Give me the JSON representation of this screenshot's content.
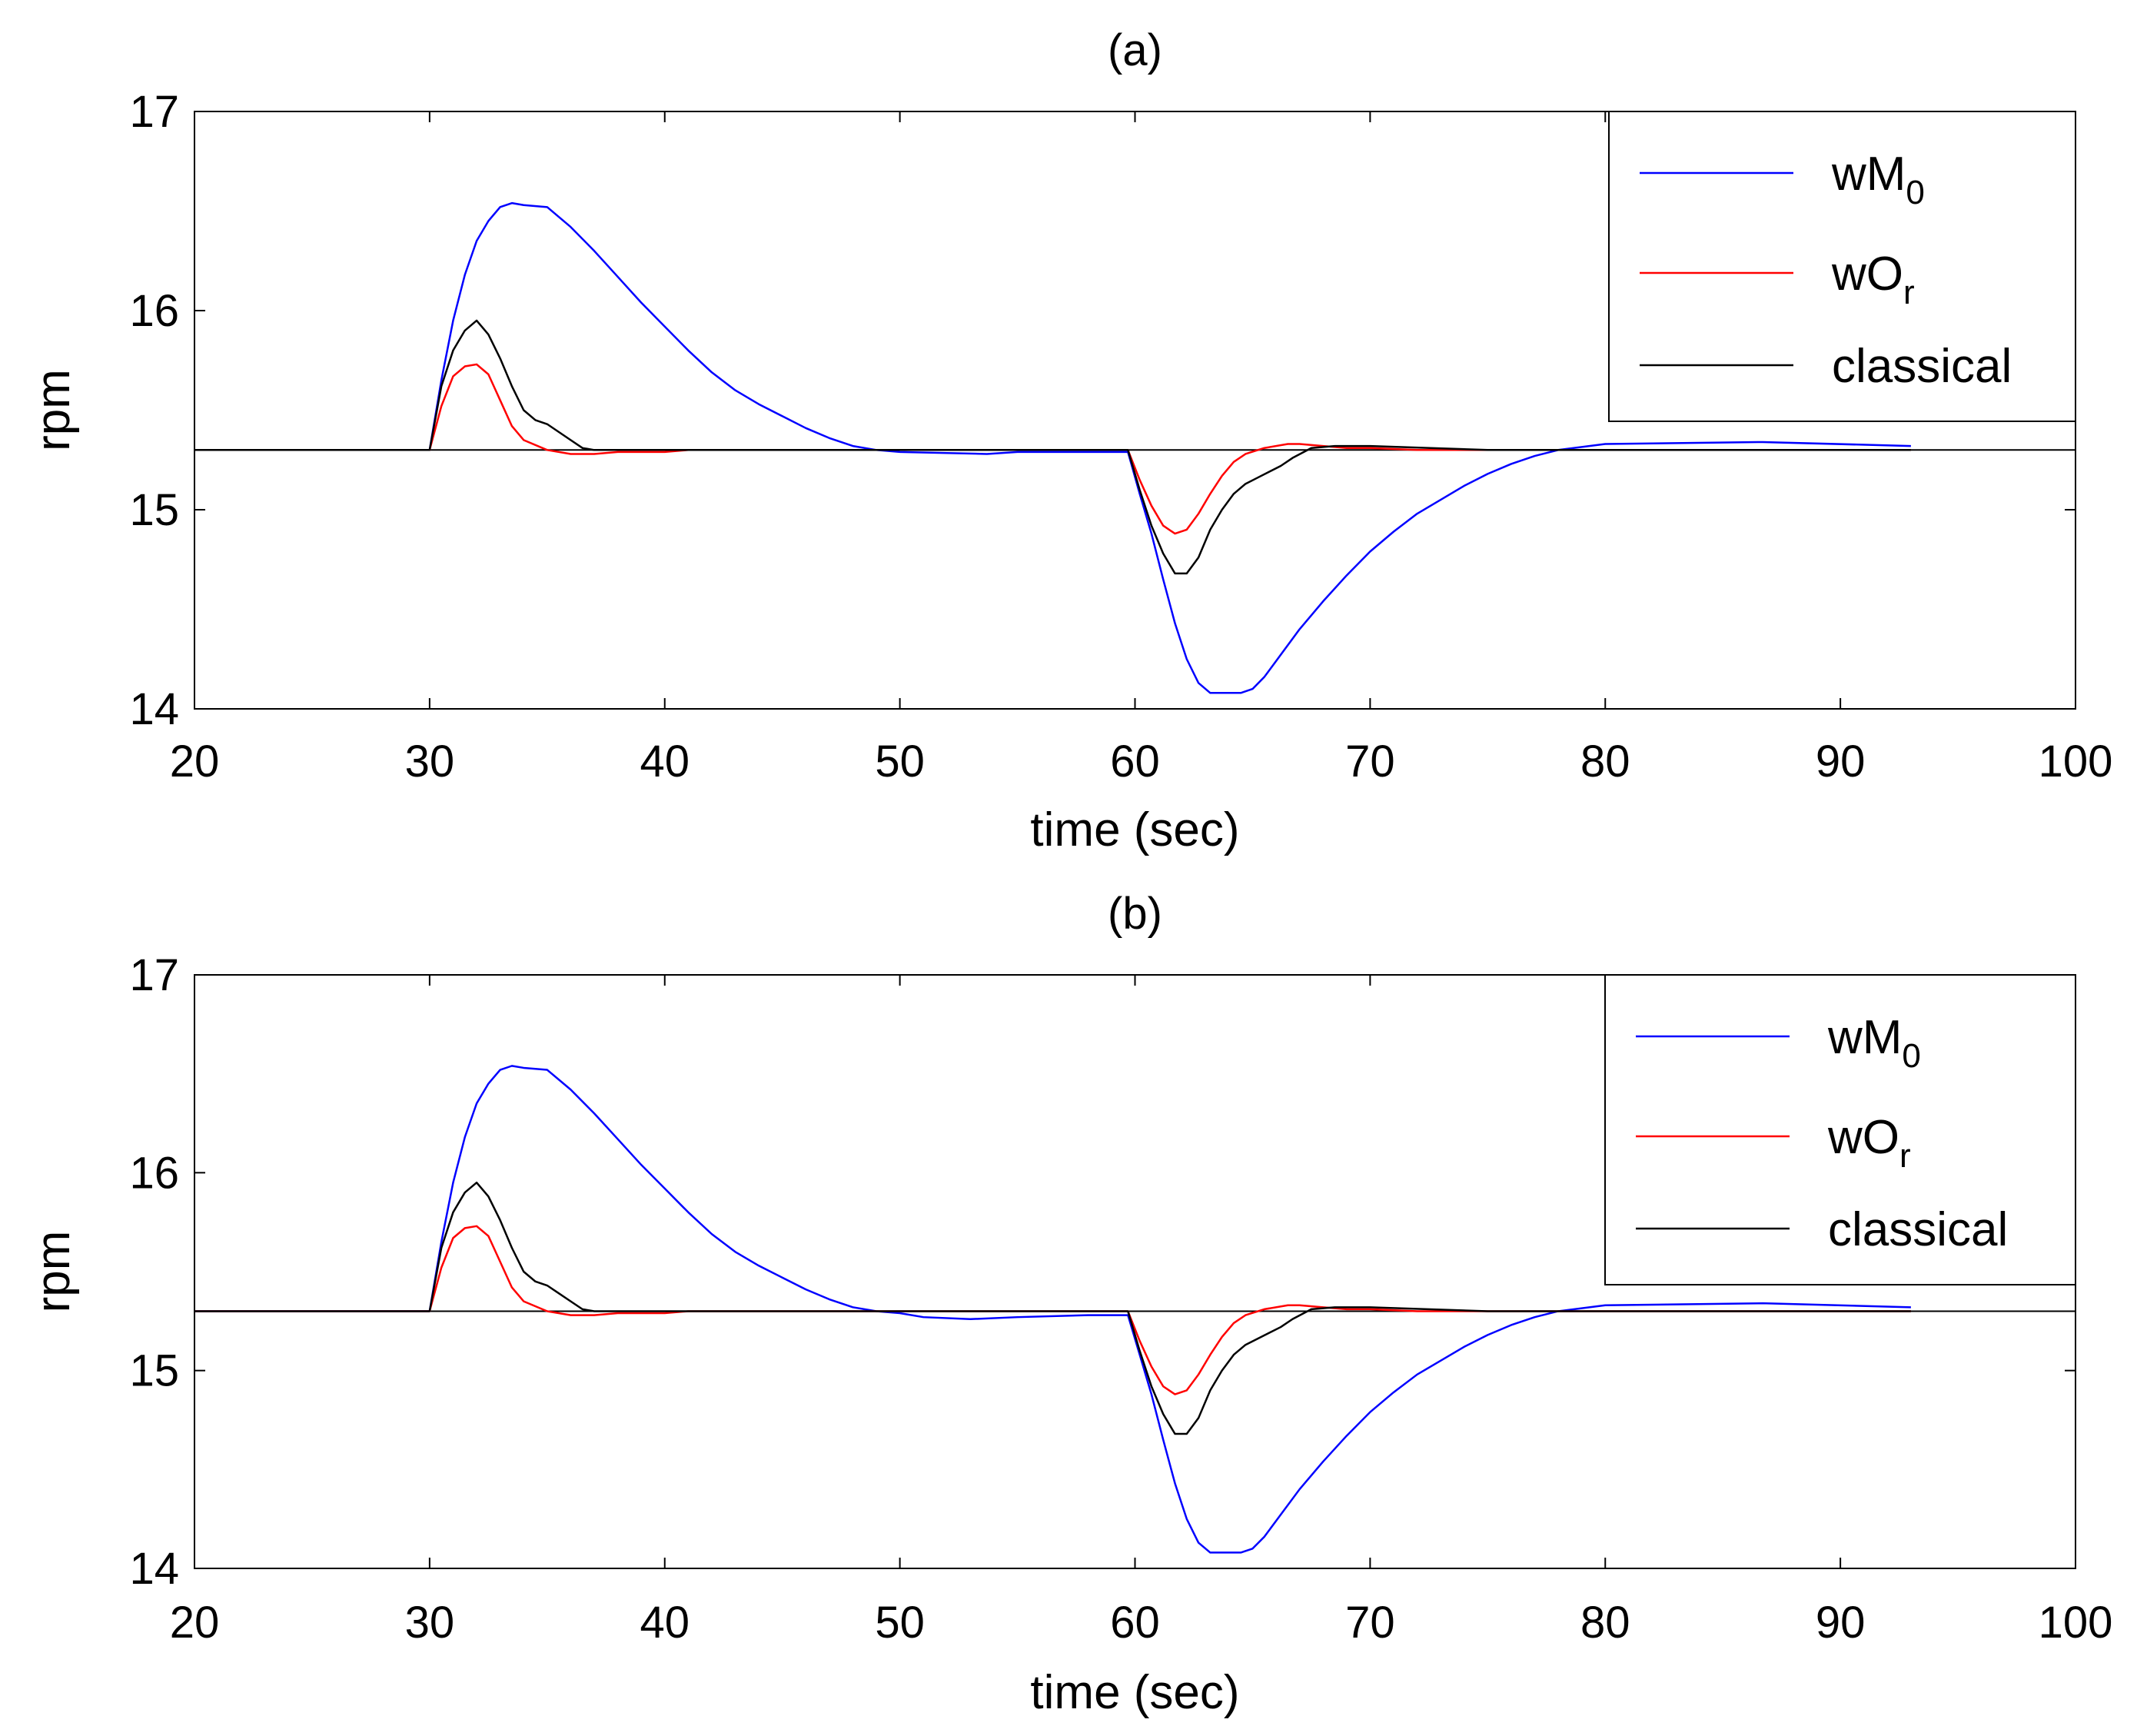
{
  "chart_data": [
    {
      "type": "line",
      "title": "(a)",
      "xlabel": "time (sec)",
      "ylabel": "rpm",
      "xlim": [
        20,
        100
      ],
      "ylim": [
        14,
        17
      ],
      "xticks": [
        20,
        30,
        40,
        50,
        60,
        70,
        80,
        90,
        100
      ],
      "yticks": [
        14,
        15,
        16,
        17
      ],
      "legend_position": "top-right",
      "reference": {
        "name": "reference",
        "color": "#000000",
        "x": [
          20,
          100
        ],
        "y": [
          15.3,
          15.3
        ]
      },
      "series": [
        {
          "name": "wM",
          "sub": "0",
          "color": "#0000ff",
          "x": [
            20,
            30,
            30.5,
            31,
            31.5,
            32,
            32.5,
            33,
            33.5,
            34,
            35,
            36,
            37,
            38,
            39,
            40,
            41,
            42,
            43,
            44,
            45,
            46,
            47,
            48,
            49,
            50,
            53.7,
            55,
            58,
            59.7,
            60.2,
            60.7,
            61.2,
            61.7,
            62.2,
            62.7,
            63.2,
            63.7,
            64.5,
            65,
            65.5,
            66,
            67,
            68,
            69,
            70,
            71,
            72,
            73,
            74,
            75,
            76,
            77,
            78,
            80,
            86.7,
            93
          ],
          "y": [
            15.3,
            15.3,
            15.65,
            15.95,
            16.18,
            16.35,
            16.45,
            16.52,
            16.54,
            16.53,
            16.52,
            16.42,
            16.3,
            16.17,
            16.04,
            15.92,
            15.8,
            15.69,
            15.6,
            15.53,
            15.47,
            15.41,
            15.36,
            15.32,
            15.3,
            15.29,
            15.28,
            15.29,
            15.29,
            15.29,
            15.08,
            14.88,
            14.65,
            14.43,
            14.25,
            14.13,
            14.08,
            14.08,
            14.08,
            14.1,
            14.16,
            14.24,
            14.4,
            14.54,
            14.67,
            14.79,
            14.89,
            14.98,
            15.05,
            15.12,
            15.18,
            15.23,
            15.27,
            15.3,
            15.33,
            15.34,
            15.32
          ]
        },
        {
          "name": "wO",
          "sub": "r",
          "color": "#ff0000",
          "x": [
            20,
            30,
            30.5,
            31,
            31.5,
            32,
            32.5,
            33,
            33.5,
            34,
            35,
            36,
            37,
            38,
            39,
            40,
            41,
            42,
            43,
            44,
            45,
            50,
            59.7,
            60.2,
            60.7,
            61.2,
            61.7,
            62.2,
            62.7,
            63.2,
            63.7,
            64.2,
            64.7,
            65.5,
            66.5,
            67,
            68,
            69,
            70,
            72,
            75,
            80,
            93
          ],
          "y": [
            15.3,
            15.3,
            15.52,
            15.67,
            15.72,
            15.73,
            15.68,
            15.55,
            15.42,
            15.35,
            15.3,
            15.28,
            15.28,
            15.29,
            15.29,
            15.29,
            15.3,
            15.3,
            15.3,
            15.3,
            15.3,
            15.3,
            15.3,
            15.15,
            15.02,
            14.92,
            14.88,
            14.9,
            14.98,
            15.08,
            15.17,
            15.24,
            15.28,
            15.31,
            15.33,
            15.33,
            15.32,
            15.31,
            15.31,
            15.3,
            15.3,
            15.3,
            15.3
          ]
        },
        {
          "name": "classical",
          "sub": "",
          "color": "#000000",
          "x": [
            20,
            30,
            30.5,
            31,
            31.5,
            32,
            32.5,
            33,
            33.5,
            34,
            34.5,
            35,
            35.5,
            36,
            36.5,
            37,
            38,
            39,
            40,
            42,
            45,
            50,
            59.7,
            60.2,
            60.7,
            61.2,
            61.7,
            62.2,
            62.7,
            63.2,
            63.7,
            64.2,
            64.7,
            65.2,
            65.7,
            66.2,
            66.7,
            67.5,
            68.5,
            70,
            75,
            80,
            93
          ],
          "y": [
            15.3,
            15.3,
            15.62,
            15.8,
            15.9,
            15.95,
            15.88,
            15.76,
            15.62,
            15.5,
            15.45,
            15.43,
            15.39,
            15.35,
            15.31,
            15.3,
            15.3,
            15.3,
            15.3,
            15.3,
            15.3,
            15.3,
            15.3,
            15.1,
            14.92,
            14.78,
            14.68,
            14.68,
            14.76,
            14.9,
            15.0,
            15.08,
            15.13,
            15.16,
            15.19,
            15.22,
            15.26,
            15.31,
            15.32,
            15.32,
            15.3,
            15.3,
            15.3
          ]
        }
      ]
    },
    {
      "type": "line",
      "title": "(b)",
      "xlabel": "time (sec)",
      "ylabel": "rpm",
      "xlim": [
        20,
        100
      ],
      "ylim": [
        14,
        17
      ],
      "xticks": [
        20,
        30,
        40,
        50,
        60,
        70,
        80,
        90,
        100
      ],
      "yticks": [
        14,
        15,
        16,
        17
      ],
      "legend_position": "top-right",
      "reference": {
        "name": "reference",
        "color": "#000000",
        "x": [
          20,
          100
        ],
        "y": [
          15.3,
          15.3
        ]
      },
      "series": [
        {
          "name": "wM",
          "sub": "0",
          "color": "#0000ff",
          "x": [
            20,
            30,
            30.5,
            31,
            31.5,
            32,
            32.5,
            33,
            33.5,
            34,
            35,
            36,
            37,
            38,
            39,
            40,
            41,
            42,
            43,
            44,
            45,
            46,
            47,
            48,
            49,
            50,
            51,
            53,
            55,
            58,
            59.7,
            60.2,
            60.7,
            61.2,
            61.7,
            62.2,
            62.7,
            63.2,
            63.7,
            64.5,
            65,
            65.5,
            66,
            67,
            68,
            69,
            70,
            71,
            72,
            73,
            74,
            75,
            76,
            77,
            78,
            80,
            86.7,
            93
          ],
          "y": [
            15.3,
            15.3,
            15.65,
            15.95,
            16.18,
            16.35,
            16.45,
            16.52,
            16.54,
            16.53,
            16.52,
            16.42,
            16.3,
            16.17,
            16.04,
            15.92,
            15.8,
            15.69,
            15.6,
            15.53,
            15.47,
            15.41,
            15.36,
            15.32,
            15.3,
            15.29,
            15.27,
            15.26,
            15.27,
            15.28,
            15.28,
            15.08,
            14.88,
            14.65,
            14.43,
            14.25,
            14.13,
            14.08,
            14.08,
            14.08,
            14.1,
            14.16,
            14.24,
            14.4,
            14.54,
            14.67,
            14.79,
            14.89,
            14.98,
            15.05,
            15.12,
            15.18,
            15.23,
            15.27,
            15.3,
            15.33,
            15.34,
            15.32
          ]
        },
        {
          "name": "wO",
          "sub": "r",
          "color": "#ff0000",
          "x": [
            20,
            30,
            30.5,
            31,
            31.5,
            32,
            32.5,
            33,
            33.5,
            34,
            35,
            36,
            37,
            38,
            39,
            40,
            41,
            42,
            43,
            44,
            45,
            50,
            59.7,
            60.2,
            60.7,
            61.2,
            61.7,
            62.2,
            62.7,
            63.2,
            63.7,
            64.2,
            64.7,
            65.5,
            66.5,
            67,
            68,
            69,
            70,
            72,
            75,
            80,
            93
          ],
          "y": [
            15.3,
            15.3,
            15.52,
            15.67,
            15.72,
            15.73,
            15.68,
            15.55,
            15.42,
            15.35,
            15.3,
            15.28,
            15.28,
            15.29,
            15.29,
            15.29,
            15.3,
            15.3,
            15.3,
            15.3,
            15.3,
            15.3,
            15.3,
            15.15,
            15.02,
            14.92,
            14.88,
            14.9,
            14.98,
            15.08,
            15.17,
            15.24,
            15.28,
            15.31,
            15.33,
            15.33,
            15.32,
            15.31,
            15.31,
            15.3,
            15.3,
            15.3,
            15.3
          ]
        },
        {
          "name": "classical",
          "sub": "",
          "color": "#000000",
          "x": [
            20,
            30,
            30.5,
            31,
            31.5,
            32,
            32.5,
            33,
            33.5,
            34,
            34.5,
            35,
            35.5,
            36,
            36.5,
            37,
            38,
            39,
            40,
            42,
            45,
            50,
            59.7,
            60.2,
            60.7,
            61.2,
            61.7,
            62.2,
            62.7,
            63.2,
            63.7,
            64.2,
            64.7,
            65.2,
            65.7,
            66.2,
            66.7,
            67.5,
            68.5,
            70,
            75,
            80,
            93
          ],
          "y": [
            15.3,
            15.3,
            15.62,
            15.8,
            15.9,
            15.95,
            15.88,
            15.76,
            15.62,
            15.5,
            15.45,
            15.43,
            15.39,
            15.35,
            15.31,
            15.3,
            15.3,
            15.3,
            15.3,
            15.3,
            15.3,
            15.3,
            15.3,
            15.1,
            14.92,
            14.78,
            14.68,
            14.68,
            14.76,
            14.9,
            15.0,
            15.08,
            15.13,
            15.16,
            15.19,
            15.22,
            15.26,
            15.31,
            15.32,
            15.32,
            15.3,
            15.3,
            15.3
          ]
        }
      ]
    }
  ]
}
